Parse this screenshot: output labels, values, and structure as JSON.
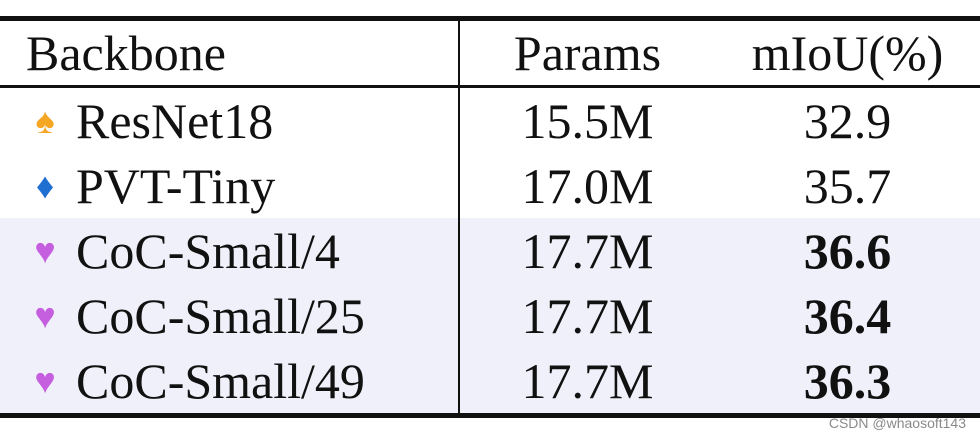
{
  "table": {
    "headers": {
      "backbone": "Backbone",
      "params": "Params",
      "miou": "mIoU(%)"
    },
    "rows": [
      {
        "marker": "♠",
        "marker_color": "#f5a623",
        "backbone": "ResNet18",
        "params": "15.5M",
        "miou": "32.9",
        "bold": false,
        "highlight": false
      },
      {
        "marker": "♦",
        "marker_color": "#1f6fd1",
        "backbone": "PVT-Tiny",
        "params": "17.0M",
        "miou": "35.7",
        "bold": false,
        "highlight": false
      },
      {
        "marker": "♥",
        "marker_color": "#c55fe0",
        "backbone": "CoC-Small/4",
        "params": "17.7M",
        "miou": "36.6",
        "bold": true,
        "highlight": true
      },
      {
        "marker": "♥",
        "marker_color": "#c55fe0",
        "backbone": "CoC-Small/25",
        "params": "17.7M",
        "miou": "36.4",
        "bold": true,
        "highlight": true
      },
      {
        "marker": "♥",
        "marker_color": "#c55fe0",
        "backbone": "CoC-Small/49",
        "params": "17.7M",
        "miou": "36.3",
        "bold": true,
        "highlight": true
      }
    ]
  },
  "watermark": "CSDN @whaosoft143"
}
